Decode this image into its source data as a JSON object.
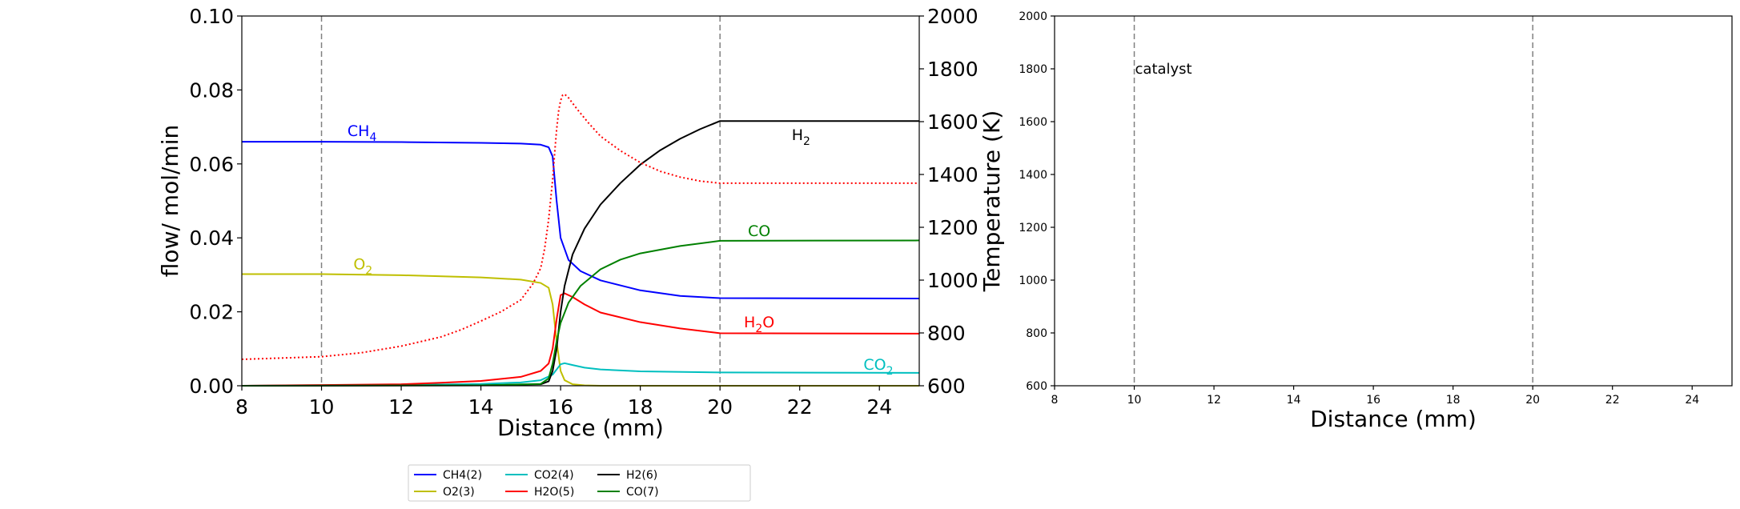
{
  "chart_data": [
    {
      "type": "line",
      "xlabel": "Distance (mm)",
      "ylabel": "flow/ mol/min",
      "y2label": "Temperature (K)",
      "xlim": [
        8,
        25
      ],
      "ylim": [
        0,
        0.1
      ],
      "y2lim": [
        600,
        2000
      ],
      "xticks": [
        8,
        10,
        12,
        14,
        16,
        18,
        20,
        22,
        24
      ],
      "xtick_labels": [
        "8",
        "10",
        "12",
        "14",
        "16",
        "18",
        "20",
        "22",
        "24"
      ],
      "yticks": [
        0,
        0.02,
        0.04,
        0.06,
        0.08,
        0.1
      ],
      "ytick_labels": [
        "0.00",
        "0.02",
        "0.04",
        "0.06",
        "0.08",
        "0.10"
      ],
      "y2ticks": [
        600,
        800,
        1000,
        1200,
        1400,
        1600,
        1800,
        2000
      ],
      "y2tick_labels": [
        "600",
        "800",
        "1000",
        "1200",
        "1400",
        "1600",
        "1800",
        "2000"
      ],
      "vlines": [
        10,
        20
      ],
      "legend_position": "bottom",
      "series": [
        {
          "name": "CH4(2)",
          "color": "#0000ff",
          "x": [
            8,
            10,
            12,
            14,
            15,
            15.5,
            15.7,
            15.8,
            15.9,
            16.0,
            16.2,
            16.5,
            17,
            18,
            19,
            20,
            25
          ],
          "y": [
            0.066,
            0.066,
            0.0659,
            0.0657,
            0.0655,
            0.0652,
            0.0645,
            0.062,
            0.05,
            0.04,
            0.034,
            0.031,
            0.0285,
            0.0258,
            0.0243,
            0.0237,
            0.0236
          ]
        },
        {
          "name": "O2(3)",
          "color": "#bfbf00",
          "x": [
            8,
            10,
            12,
            14,
            15,
            15.5,
            15.7,
            15.8,
            15.9,
            16.0,
            16.1,
            16.3,
            16.6,
            17,
            25
          ],
          "y": [
            0.0302,
            0.0302,
            0.0299,
            0.0293,
            0.0287,
            0.0278,
            0.0265,
            0.022,
            0.012,
            0.004,
            0.0015,
            0.0004,
            0.0001,
            0.0,
            0.0
          ]
        },
        {
          "name": "CO2(4)",
          "color": "#00bfbf",
          "x": [
            8,
            12,
            14,
            15,
            15.5,
            15.8,
            16.0,
            16.1,
            16.3,
            16.6,
            17,
            18,
            20,
            25
          ],
          "y": [
            0.0,
            0.0002,
            0.0005,
            0.0009,
            0.0015,
            0.003,
            0.0058,
            0.0061,
            0.0056,
            0.0049,
            0.0044,
            0.0039,
            0.0036,
            0.0035
          ]
        },
        {
          "name": "H2O(5)",
          "color": "#ff0000",
          "x": [
            8,
            10,
            12,
            13,
            14,
            15,
            15.5,
            15.7,
            15.8,
            15.9,
            16.0,
            16.1,
            16.3,
            16.6,
            17,
            18,
            19,
            20,
            25
          ],
          "y": [
            0.0,
            0.0002,
            0.0004,
            0.0008,
            0.0013,
            0.0024,
            0.004,
            0.006,
            0.01,
            0.018,
            0.0245,
            0.025,
            0.024,
            0.022,
            0.0198,
            0.0172,
            0.0155,
            0.0142,
            0.0141
          ]
        },
        {
          "name": "H2(6)",
          "color": "#000000",
          "x": [
            8,
            14,
            15.5,
            15.7,
            15.8,
            15.9,
            16.0,
            16.1,
            16.3,
            16.6,
            17,
            17.5,
            18,
            18.5,
            19,
            19.5,
            20,
            25
          ],
          "y": [
            0.0,
            0.0001,
            0.0004,
            0.0012,
            0.004,
            0.01,
            0.02,
            0.027,
            0.0355,
            0.0425,
            0.049,
            0.0548,
            0.0598,
            0.0637,
            0.0668,
            0.0694,
            0.0716,
            0.0716
          ]
        },
        {
          "name": "CO(7)",
          "color": "#008000",
          "x": [
            8,
            14,
            15.5,
            15.7,
            15.8,
            15.9,
            16.0,
            16.2,
            16.5,
            17,
            17.5,
            18,
            19,
            20,
            25
          ],
          "y": [
            0.0,
            0.0001,
            0.0005,
            0.002,
            0.006,
            0.012,
            0.017,
            0.0225,
            0.027,
            0.0315,
            0.0341,
            0.0358,
            0.0378,
            0.0392,
            0.0393
          ]
        }
      ],
      "temperature_series": {
        "color": "#ff0000",
        "style": "dotted",
        "x": [
          8,
          10,
          11,
          12,
          13,
          13.5,
          14,
          14.5,
          15,
          15.3,
          15.5,
          15.6,
          15.7,
          15.8,
          15.85,
          15.9,
          15.95,
          16.0,
          16.05,
          16.1,
          16.2,
          16.4,
          16.7,
          17,
          17.5,
          18,
          18.5,
          19,
          19.5,
          20,
          25
        ],
        "y": [
          700,
          710,
          725,
          750,
          785,
          812,
          845,
          880,
          925,
          985,
          1045,
          1120,
          1230,
          1380,
          1480,
          1570,
          1640,
          1680,
          1700,
          1704,
          1690,
          1650,
          1595,
          1545,
          1490,
          1445,
          1412,
          1390,
          1375,
          1367,
          1367
        ]
      },
      "annotations": [
        {
          "base": "CH",
          "sub": "4",
          "x": 10.65,
          "y": 0.0675,
          "color": "#0000ff"
        },
        {
          "base": "O",
          "sub": "2",
          "x": 10.8,
          "y": 0.0315,
          "color": "#bfbf00"
        },
        {
          "base": "H",
          "sub": "2",
          "x": 21.8,
          "y": 0.0665,
          "color": "#000000"
        },
        {
          "base": "CO",
          "sub": "",
          "x": 20.7,
          "y": 0.0405,
          "color": "#008000"
        },
        {
          "base": "H",
          "sub": "2",
          "suffix": "O",
          "x": 20.6,
          "y": 0.0158,
          "color": "#ff0000"
        },
        {
          "base": "CO",
          "sub": "2",
          "x": 23.6,
          "y": 0.0043,
          "color": "#00bfbf"
        }
      ]
    },
    {
      "type": "line",
      "xlabel": "Distance (mm)",
      "xlim": [
        8,
        25
      ],
      "ylim": [
        600,
        2000
      ],
      "xticks": [
        8,
        10,
        12,
        14,
        16,
        18,
        20,
        22,
        24
      ],
      "xtick_labels": [
        "8",
        "10",
        "12",
        "14",
        "16",
        "18",
        "20",
        "22",
        "24"
      ],
      "yticks": [
        600,
        800,
        1000,
        1200,
        1400,
        1600,
        1800,
        2000
      ],
      "ytick_labels": [
        "600",
        "800",
        "1000",
        "1200",
        "1400",
        "1600",
        "1800",
        "2000"
      ],
      "vlines": [
        10,
        20
      ],
      "annotations": [
        {
          "text": "catalyst",
          "x": 10,
          "y": 1800
        }
      ],
      "series": []
    }
  ]
}
